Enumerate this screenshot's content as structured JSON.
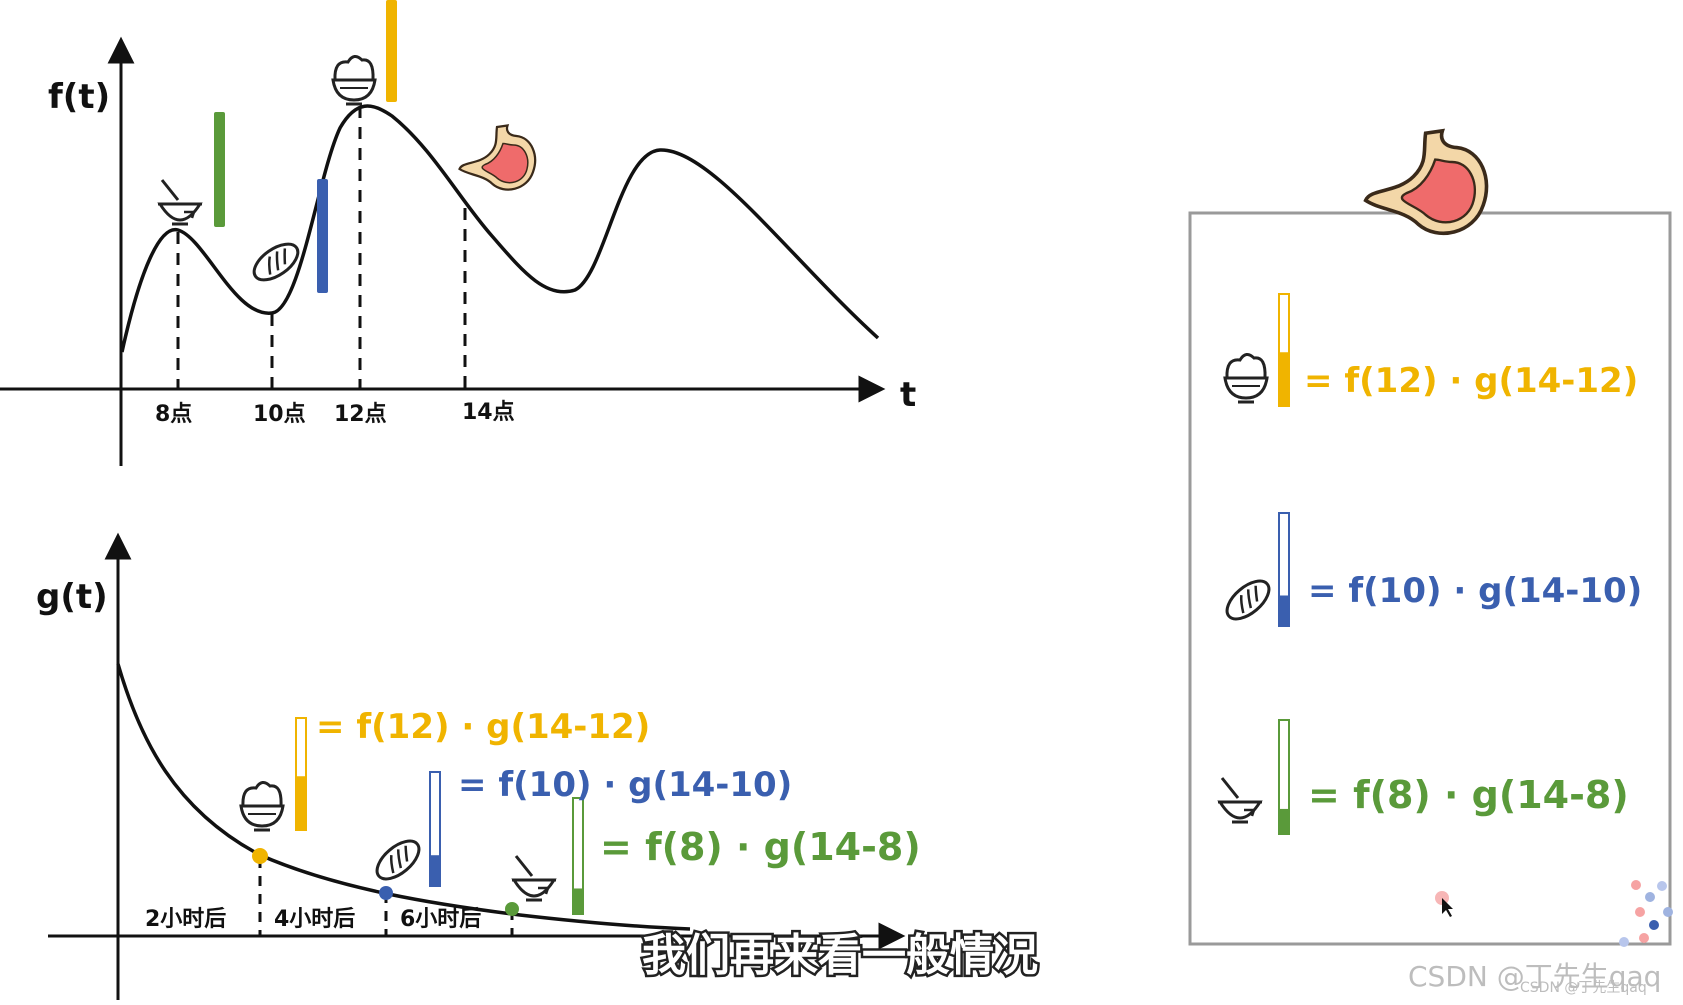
{
  "colors": {
    "yellow": "#f0b400",
    "blue": "#3a5faf",
    "green": "#5a9a3a",
    "axis": "#111111",
    "panel_border": "#9a9a9a",
    "stomach_red": "#ef6b6b",
    "stomach_outline": "#f3c98e"
  },
  "top_chart": {
    "y_label": "f(t)",
    "x_label": "t",
    "ticks": [
      "8点",
      "10点",
      "12点",
      "14点"
    ]
  },
  "bottom_chart": {
    "y_label": "g(t)",
    "intervals": [
      "2小时后",
      "4小时后",
      "6小时后"
    ],
    "eq_yellow": "= f(12) · g(14-12)",
    "eq_blue": "= f(10) · g(14-10)",
    "eq_green": "= f(8) · g(14-8)",
    "fill_levels": {
      "yellow": 0.48,
      "blue": 0.27,
      "green": 0.22
    }
  },
  "panel": {
    "eq_yellow": "= f(12) · g(14-12)",
    "eq_blue": "= f(10) · g(14-10)",
    "eq_green": "= f(8) · g(14-8)",
    "fill_levels": {
      "yellow": 0.48,
      "blue": 0.27,
      "green": 0.22
    }
  },
  "food_icons": [
    "bowl-icon",
    "bread-icon",
    "rice-bowl-icon",
    "stomach-icon"
  ],
  "subtitle": "我们再来看一般情况",
  "watermark_large": "CSDN @丁先生qaq",
  "watermark_small": "CSDN @丁先生qaq"
}
